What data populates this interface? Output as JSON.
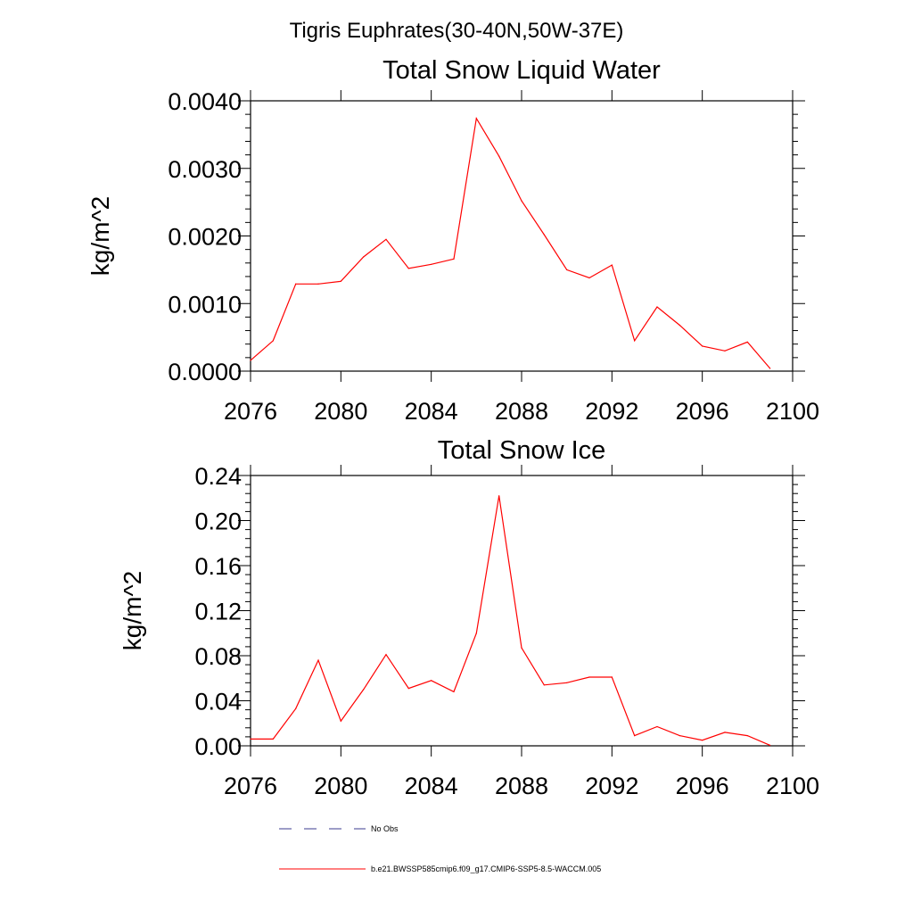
{
  "figure_title": "Tigris Euphrates(30-40N,50W-37E)",
  "legend": [
    {
      "label": "No Obs",
      "color": "#3b3b8f",
      "style": "dashed"
    },
    {
      "label": "b.e21.BWSSP585cmip6.f09_g17.CMIP6-SSP5-8.5-WACCM.005",
      "color": "#ff0000",
      "style": "solid"
    }
  ],
  "chart_data": [
    {
      "type": "line",
      "title": "Total Snow Liquid Water",
      "xlabel": "",
      "ylabel": "kg/m^2",
      "xlim": [
        2076,
        2100
      ],
      "ylim": [
        0,
        0.004
      ],
      "xticks": [
        2076,
        2080,
        2084,
        2088,
        2092,
        2096,
        2100
      ],
      "xtick_labels": [
        "2076",
        "2080",
        "2084",
        "2088",
        "2092",
        "2096",
        "2100"
      ],
      "yticks": [
        0,
        0.001,
        0.002,
        0.003,
        0.004
      ],
      "ytick_labels": [
        "0.0000",
        "0.0010",
        "0.0020",
        "0.0030",
        "0.0040"
      ],
      "grid": false,
      "series": [
        {
          "name": "b.e21.BWSSP585cmip6.f09_g17.CMIP6-SSP5-8.5-WACCM.005",
          "color": "#ff0000",
          "x": [
            2076,
            2077,
            2078,
            2079,
            2080,
            2081,
            2082,
            2083,
            2084,
            2085,
            2086,
            2087,
            2088,
            2089,
            2090,
            2091,
            2092,
            2093,
            2094,
            2095,
            2096,
            2097,
            2098,
            2099
          ],
          "y": [
            0.00016,
            0.00045,
            0.00129,
            0.00129,
            0.00133,
            0.00169,
            0.00195,
            0.00152,
            0.00158,
            0.00166,
            0.00374,
            0.00318,
            0.00252,
            0.00202,
            0.0015,
            0.00138,
            0.00157,
            0.00045,
            0.00095,
            0.00068,
            0.00037,
            0.0003,
            0.00043,
            4e-05
          ]
        }
      ]
    },
    {
      "type": "line",
      "title": "Total Snow Ice",
      "xlabel": "",
      "ylabel": "kg/m^2",
      "xlim": [
        2076,
        2100
      ],
      "ylim": [
        0,
        0.24
      ],
      "xticks": [
        2076,
        2080,
        2084,
        2088,
        2092,
        2096,
        2100
      ],
      "xtick_labels": [
        "2076",
        "2080",
        "2084",
        "2088",
        "2092",
        "2096",
        "2100"
      ],
      "yticks": [
        0,
        0.04,
        0.08,
        0.12,
        0.16,
        0.2,
        0.24
      ],
      "ytick_labels": [
        "0.00",
        "0.04",
        "0.08",
        "0.12",
        "0.16",
        "0.20",
        "0.24"
      ],
      "grid": false,
      "series": [
        {
          "name": "b.e21.BWSSP585cmip6.f09_g17.CMIP6-SSP5-8.5-WACCM.005",
          "color": "#ff0000",
          "x": [
            2076,
            2077,
            2078,
            2079,
            2080,
            2081,
            2082,
            2083,
            2084,
            2085,
            2086,
            2087,
            2088,
            2089,
            2090,
            2091,
            2092,
            2093,
            2094,
            2095,
            2096,
            2097,
            2098,
            2099
          ],
          "y": [
            0.006,
            0.006,
            0.033,
            0.076,
            0.022,
            0.05,
            0.081,
            0.051,
            0.058,
            0.048,
            0.1,
            0.222,
            0.087,
            0.054,
            0.056,
            0.061,
            0.061,
            0.009,
            0.017,
            0.009,
            0.005,
            0.012,
            0.009,
            0.0005
          ]
        }
      ]
    }
  ]
}
